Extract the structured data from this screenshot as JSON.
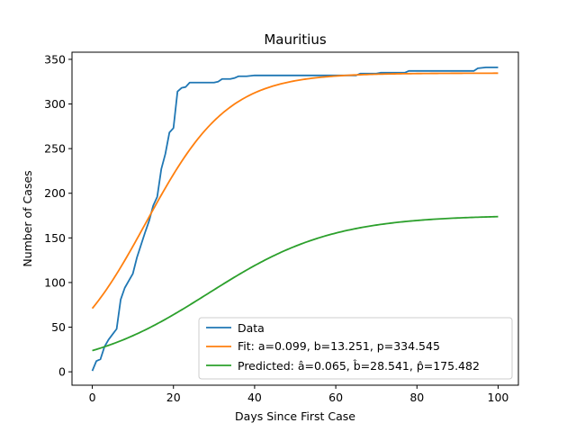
{
  "chart_data": {
    "type": "line",
    "title": "Mauritius",
    "xlabel": "Days Since First Case",
    "ylabel": "Number of Cases",
    "xlim": [
      -5,
      105
    ],
    "ylim": [
      -15,
      358
    ],
    "x_ticks": [
      0,
      20,
      40,
      60,
      80,
      100
    ],
    "y_ticks": [
      0,
      50,
      100,
      150,
      200,
      250,
      300,
      350
    ],
    "grid": false,
    "legend_position": "lower right",
    "series": [
      {
        "name": "Data",
        "color": "#1f77b4",
        "x": [
          0,
          1,
          2,
          3,
          4,
          5,
          6,
          7,
          8,
          9,
          10,
          11,
          12,
          13,
          14,
          15,
          16,
          17,
          18,
          19,
          20,
          21,
          22,
          23,
          24,
          25,
          26,
          27,
          28,
          29,
          30,
          31,
          32,
          33,
          34,
          35,
          36,
          37,
          38,
          40,
          45,
          50,
          55,
          60,
          65,
          66,
          70,
          71,
          75,
          77,
          78,
          80,
          85,
          90,
          94,
          95,
          97,
          100
        ],
        "y": [
          1,
          12,
          14,
          28,
          36,
          42,
          48,
          81,
          94,
          102,
          110,
          128,
          142,
          156,
          169,
          186,
          196,
          227,
          244,
          268,
          273,
          314,
          318,
          319,
          324,
          324,
          324,
          324,
          324,
          324,
          324,
          325,
          328,
          328,
          328,
          329,
          331,
          331,
          331,
          332,
          332,
          332,
          332,
          332,
          332,
          334,
          334,
          335,
          335,
          335,
          337,
          337,
          337,
          337,
          337,
          340,
          341,
          341
        ]
      },
      {
        "name": "Fit: a=0.099, b=13.251, p=334.545",
        "color": "#ff7f0e",
        "model": {
          "a": 0.099,
          "b": 13.251,
          "p": 334.545
        }
      },
      {
        "name": "Predicted: â=0.065, b̂=28.541, p̂=175.482",
        "color": "#2ca02c",
        "model": {
          "a": 0.065,
          "b": 28.541,
          "p": 175.482
        }
      }
    ]
  }
}
